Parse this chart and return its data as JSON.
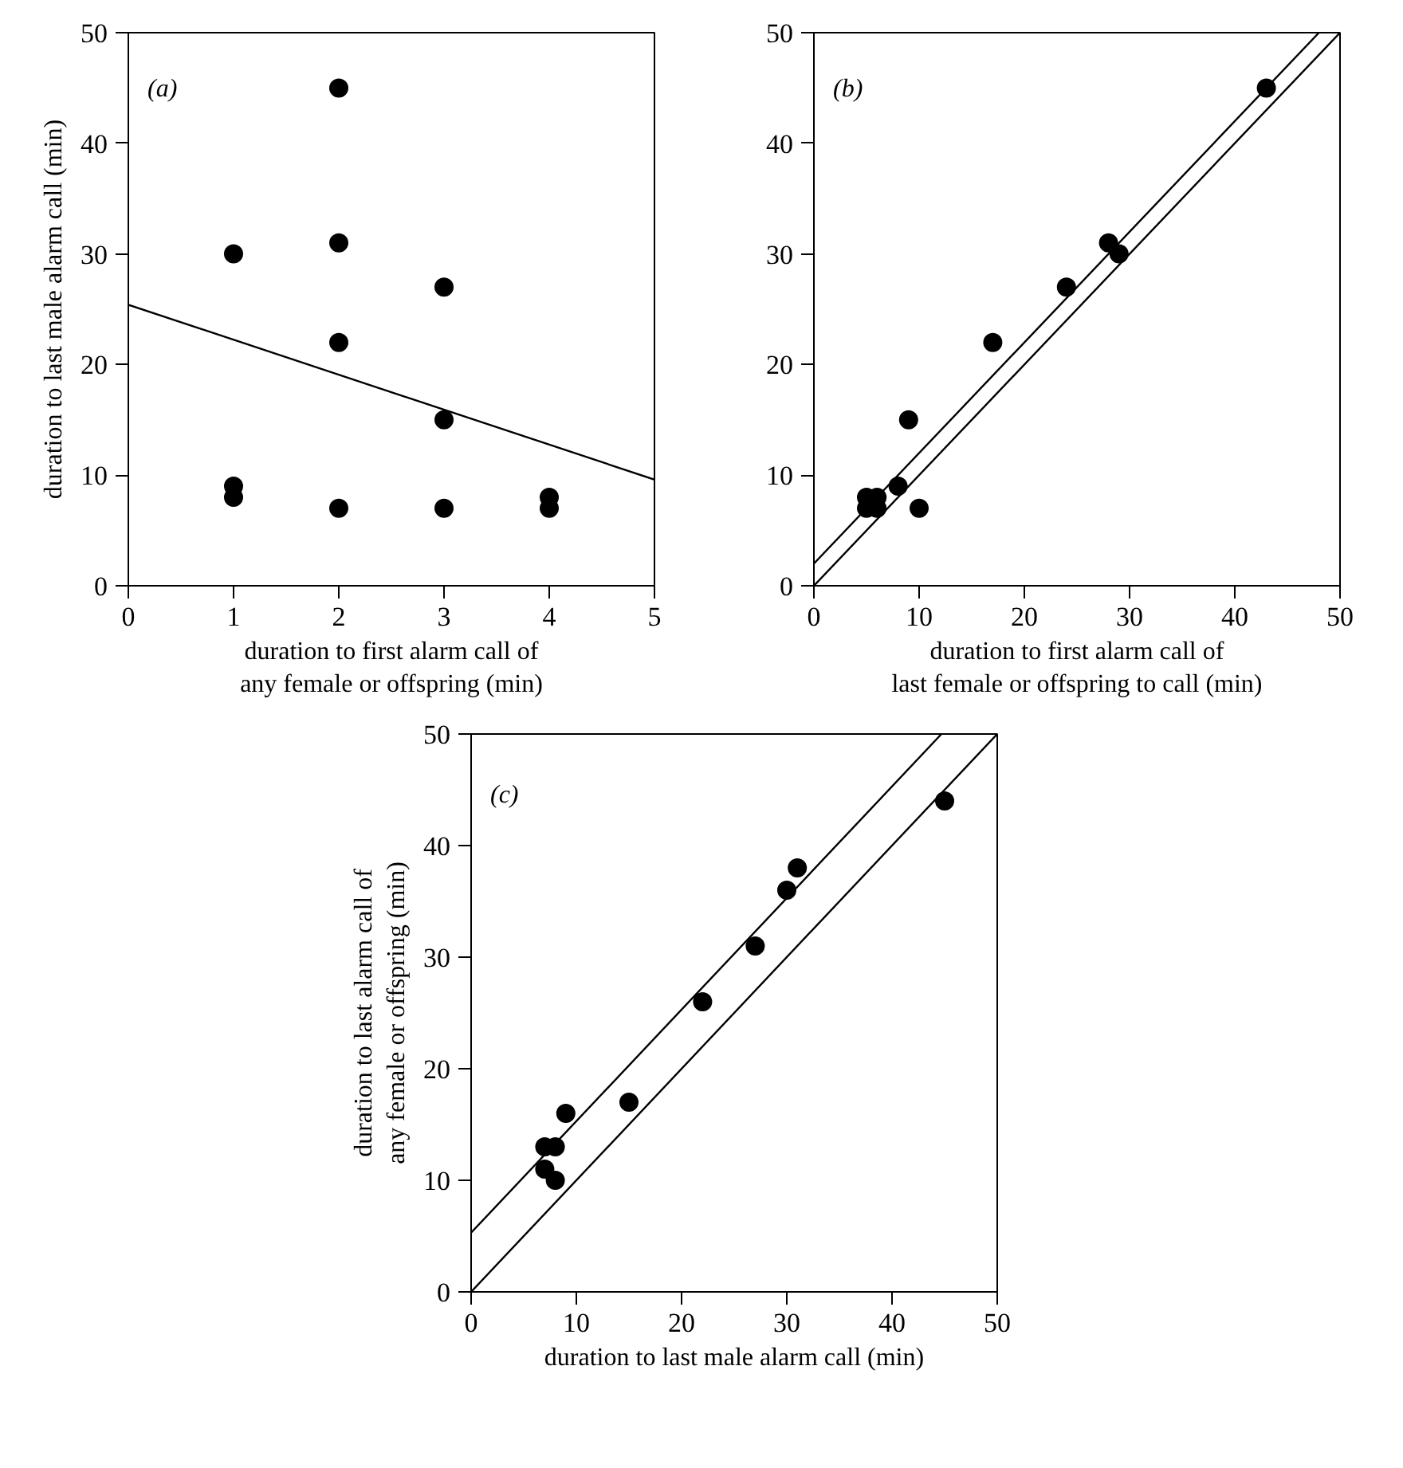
{
  "chart_data": [
    {
      "type": "scatter",
      "annotations": [
        "(a)"
      ],
      "xlabel": "duration to first alarm call of\nany female or offspring (min)",
      "ylabel": "duration to last male alarm call (min)",
      "xlim": [
        0,
        5
      ],
      "ylim": [
        0,
        50
      ],
      "xticks": [
        0,
        1,
        2,
        3,
        4,
        5
      ],
      "yticks": [
        0,
        10,
        20,
        30,
        40,
        50
      ],
      "series": [
        {
          "marker": "circle",
          "color": "#000000",
          "x": [
            1,
            1,
            1,
            2,
            2,
            2,
            2,
            3,
            3,
            3,
            4,
            4
          ],
          "values": [
            30,
            9,
            8,
            45,
            31,
            22,
            7,
            27,
            15,
            7,
            8,
            7
          ]
        },
        {
          "type": "line",
          "color": "#000000",
          "x": [
            0,
            5
          ],
          "values": [
            25.4,
            9.6
          ]
        }
      ]
    },
    {
      "type": "scatter",
      "annotations": [
        "(b)"
      ],
      "xlabel": "duration to first alarm call of\nlast female or offspring to call (min)",
      "xlim": [
        0,
        50
      ],
      "ylim": [
        0,
        50
      ],
      "xticks": [
        0,
        10,
        20,
        30,
        40,
        50
      ],
      "yticks": [
        0,
        10,
        20,
        30,
        40,
        50
      ],
      "series": [
        {
          "marker": "circle",
          "color": "#000000",
          "x": [
            5,
            5,
            6,
            6,
            8,
            9,
            10,
            17,
            24,
            28,
            29,
            43
          ],
          "values": [
            8,
            7,
            8,
            7,
            9,
            15,
            7,
            22,
            27,
            31,
            30,
            45
          ]
        },
        {
          "type": "line",
          "color": "#000000",
          "x": [
            0,
            50
          ],
          "values": [
            0,
            50
          ]
        },
        {
          "type": "line",
          "color": "#000000",
          "x": [
            0,
            48
          ],
          "values": [
            2,
            50
          ]
        }
      ]
    },
    {
      "type": "scatter",
      "annotations": [
        "(c)"
      ],
      "xlabel": "duration to last male alarm call (min)",
      "ylabel": "duration to last alarm call of\nany female or offspring (min)",
      "xlim": [
        0,
        50
      ],
      "ylim": [
        0,
        50
      ],
      "xticks": [
        0,
        10,
        20,
        30,
        40,
        50
      ],
      "yticks": [
        0,
        10,
        20,
        30,
        40,
        50
      ],
      "series": [
        {
          "marker": "circle",
          "color": "#000000",
          "x": [
            7,
            7,
            8,
            8,
            9,
            15,
            22,
            27,
            30,
            31,
            45
          ],
          "values": [
            13,
            11,
            13,
            10,
            16,
            17,
            26,
            31,
            36,
            38,
            44
          ]
        },
        {
          "type": "line",
          "color": "#000000",
          "x": [
            0,
            50
          ],
          "values": [
            0,
            50
          ]
        },
        {
          "type": "line",
          "color": "#000000",
          "x": [
            0,
            44.7
          ],
          "values": [
            5.3,
            50
          ]
        }
      ]
    }
  ]
}
